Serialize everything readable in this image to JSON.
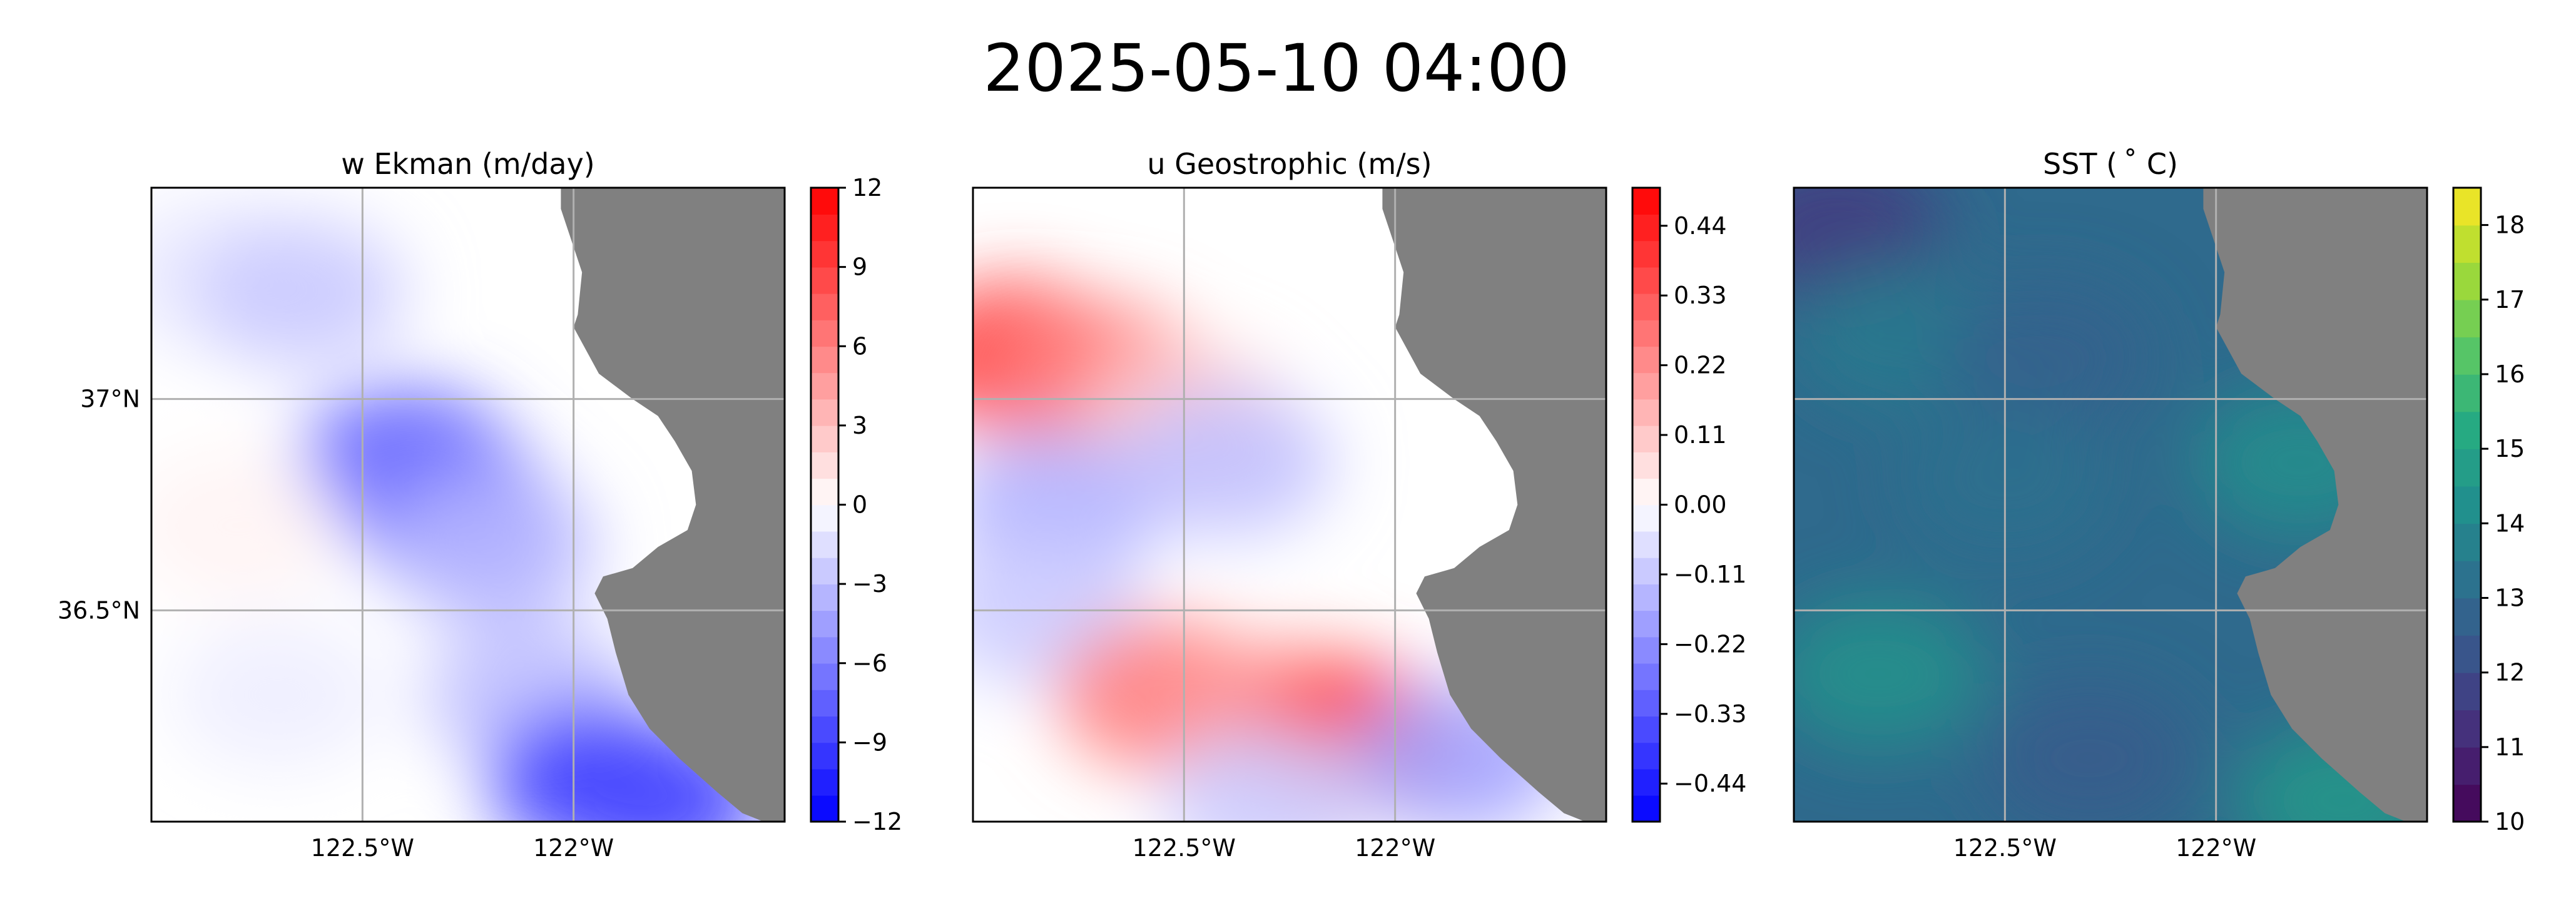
{
  "figure": {
    "suptitle": "2025-05-10 04:00"
  },
  "colors": {
    "land": "#808080",
    "ocean_default": "#ffffff",
    "grid": "#b0b0b0"
  },
  "chart_data": [
    {
      "type": "heatmap",
      "title": "w Ekman (m/day)",
      "colormap": "bwr",
      "colorbar": {
        "min": -12,
        "max": 12,
        "ticks": [
          12,
          9,
          6,
          3,
          0,
          -3,
          -6,
          -9,
          -12
        ],
        "tick_labels": [
          "12",
          "9",
          "6",
          "3",
          "0",
          "−3",
          "−6",
          "−9",
          "−12"
        ]
      },
      "lon_range": [
        -123.0,
        -121.5
      ],
      "lat_range": [
        36.0,
        37.5
      ],
      "xticks": [
        -122.5,
        -122.0
      ],
      "xtick_labels": [
        "122.5°W",
        "122°W"
      ],
      "yticks": [
        37.0,
        36.5
      ],
      "ytick_labels": [
        "37°N",
        "36.5°N"
      ],
      "grid": true,
      "field_features": [
        {
          "lon": -122.85,
          "lat": 37.3,
          "value": -1.0
        },
        {
          "lon": -122.65,
          "lat": 37.25,
          "value": -2.5
        },
        {
          "lon": -122.4,
          "lat": 36.85,
          "value": -7.5
        },
        {
          "lon": -122.3,
          "lat": 36.75,
          "value": -6.5
        },
        {
          "lon": -122.2,
          "lat": 36.65,
          "value": -3.5
        },
        {
          "lon": -122.1,
          "lat": 36.3,
          "value": -3.0
        },
        {
          "lon": -121.95,
          "lat": 36.1,
          "value": -9.0
        },
        {
          "lon": -121.8,
          "lat": 36.05,
          "value": -8.5
        },
        {
          "lon": -122.8,
          "lat": 36.7,
          "value": 0.5
        },
        {
          "lon": -122.7,
          "lat": 36.3,
          "value": -0.8
        }
      ]
    },
    {
      "type": "heatmap",
      "title": "u Geostrophic (m/s)",
      "colormap": "bwr",
      "colorbar": {
        "min": -0.5,
        "max": 0.5,
        "ticks": [
          0.44,
          0.33,
          0.22,
          0.11,
          0.0,
          -0.11,
          -0.22,
          -0.33,
          -0.44
        ],
        "tick_labels": [
          "0.44",
          "0.33",
          "0.22",
          "0.11",
          "0.00",
          "−0.11",
          "−0.22",
          "−0.33",
          "−0.44"
        ]
      },
      "lon_range": [
        -123.0,
        -121.5
      ],
      "lat_range": [
        36.0,
        37.5
      ],
      "xticks": [
        -122.5,
        -122.0
      ],
      "xtick_labels": [
        "122.5°W",
        "122°W"
      ],
      "yticks": [
        37.0,
        36.5
      ],
      "ytick_labels": [
        "37°N",
        "36.5°N"
      ],
      "grid": true,
      "field_features": [
        {
          "lon": -122.9,
          "lat": 37.1,
          "value": 0.38
        },
        {
          "lon": -122.7,
          "lat": 37.05,
          "value": 0.25
        },
        {
          "lon": -122.5,
          "lat": 36.95,
          "value": 0.1
        },
        {
          "lon": -122.8,
          "lat": 36.75,
          "value": -0.15
        },
        {
          "lon": -122.4,
          "lat": 36.85,
          "value": -0.12
        },
        {
          "lon": -122.85,
          "lat": 36.5,
          "value": -0.1
        },
        {
          "lon": -122.55,
          "lat": 36.3,
          "value": 0.25
        },
        {
          "lon": -122.25,
          "lat": 36.25,
          "value": 0.2
        },
        {
          "lon": -122.1,
          "lat": 36.2,
          "value": 0.4
        },
        {
          "lon": -121.85,
          "lat": 36.15,
          "value": -0.18
        },
        {
          "lon": -122.3,
          "lat": 36.05,
          "value": -0.1
        }
      ]
    },
    {
      "type": "heatmap",
      "title": "SST ($^\\circ$C)",
      "title_display": "SST ( ˚ C)",
      "colormap": "viridis",
      "colorbar": {
        "min": 10,
        "max": 18.5,
        "ticks": [
          18,
          17,
          16,
          15,
          14,
          13,
          12,
          11,
          10
        ],
        "tick_labels": [
          "18",
          "17",
          "16",
          "15",
          "14",
          "13",
          "12",
          "11",
          "10"
        ]
      },
      "lon_range": [
        -123.0,
        -121.5
      ],
      "lat_range": [
        36.0,
        37.5
      ],
      "xticks": [
        -122.5,
        -122.0
      ],
      "xtick_labels": [
        "122.5°W",
        "122°W"
      ],
      "yticks": [
        37.0,
        36.5
      ],
      "ytick_labels": [
        "37°N",
        "36.5°N"
      ],
      "grid": true,
      "field_features": [
        {
          "lon": -122.9,
          "lat": 37.4,
          "value": 11.5
        },
        {
          "lon": -122.75,
          "lat": 37.15,
          "value": 13.5
        },
        {
          "lon": -122.4,
          "lat": 37.1,
          "value": 12.7
        },
        {
          "lon": -122.5,
          "lat": 36.8,
          "value": 13.2
        },
        {
          "lon": -121.8,
          "lat": 36.85,
          "value": 14.2
        },
        {
          "lon": -122.8,
          "lat": 36.35,
          "value": 14.3
        },
        {
          "lon": -122.3,
          "lat": 36.15,
          "value": 12.5
        },
        {
          "lon": -121.7,
          "lat": 36.05,
          "value": 14.5
        }
      ]
    }
  ]
}
